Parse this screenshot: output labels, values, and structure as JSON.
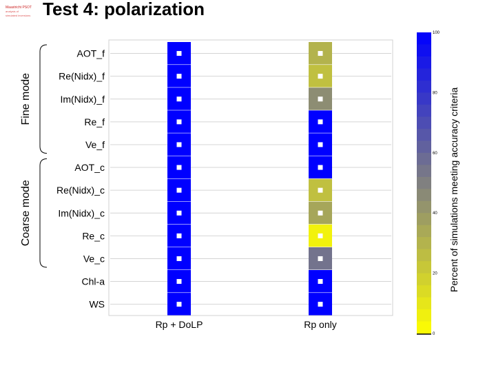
{
  "header": {
    "title": "Test 4: polarization",
    "logo_line1": "Maastricht PSOT",
    "logo_line2": "analysis of",
    "logo_line3": "simulated inversions"
  },
  "chart_data": {
    "type": "heatmap",
    "title": "Test 4: polarization",
    "categories_x": [
      "Rp + DoLP",
      "Rp only"
    ],
    "categories_y": [
      "AOT_f",
      "Re(Nidx)_f",
      "Im(Nidx)_f",
      "Re_f",
      "Ve_f",
      "AOT_c",
      "Re(Nidx)_c",
      "Im(Nidx)_c",
      "Re_c",
      "Ve_c",
      "Chl-a",
      "WS"
    ],
    "values": [
      [
        100,
        30
      ],
      [
        100,
        25
      ],
      [
        100,
        45
      ],
      [
        100,
        100
      ],
      [
        100,
        100
      ],
      [
        100,
        100
      ],
      [
        100,
        25
      ],
      [
        100,
        35
      ],
      [
        100,
        5
      ],
      [
        100,
        55
      ],
      [
        100,
        100
      ],
      [
        100,
        100
      ]
    ],
    "groups": [
      {
        "label": "Fine mode",
        "rows": [
          "AOT_f",
          "Ve_f"
        ]
      },
      {
        "label": "Coarse mode",
        "rows": [
          "AOT_c",
          "Ve_c"
        ]
      }
    ],
    "colorbar": {
      "label": "Percent of simulations meeting accuracy criteria",
      "ticks": [
        "0",
        "20",
        "40",
        "60",
        "80",
        "100"
      ],
      "range": [
        0,
        100
      ],
      "low_color": "#ffff00",
      "mid_color": "#808080",
      "high_color": "#0000ff"
    },
    "grid": true
  }
}
